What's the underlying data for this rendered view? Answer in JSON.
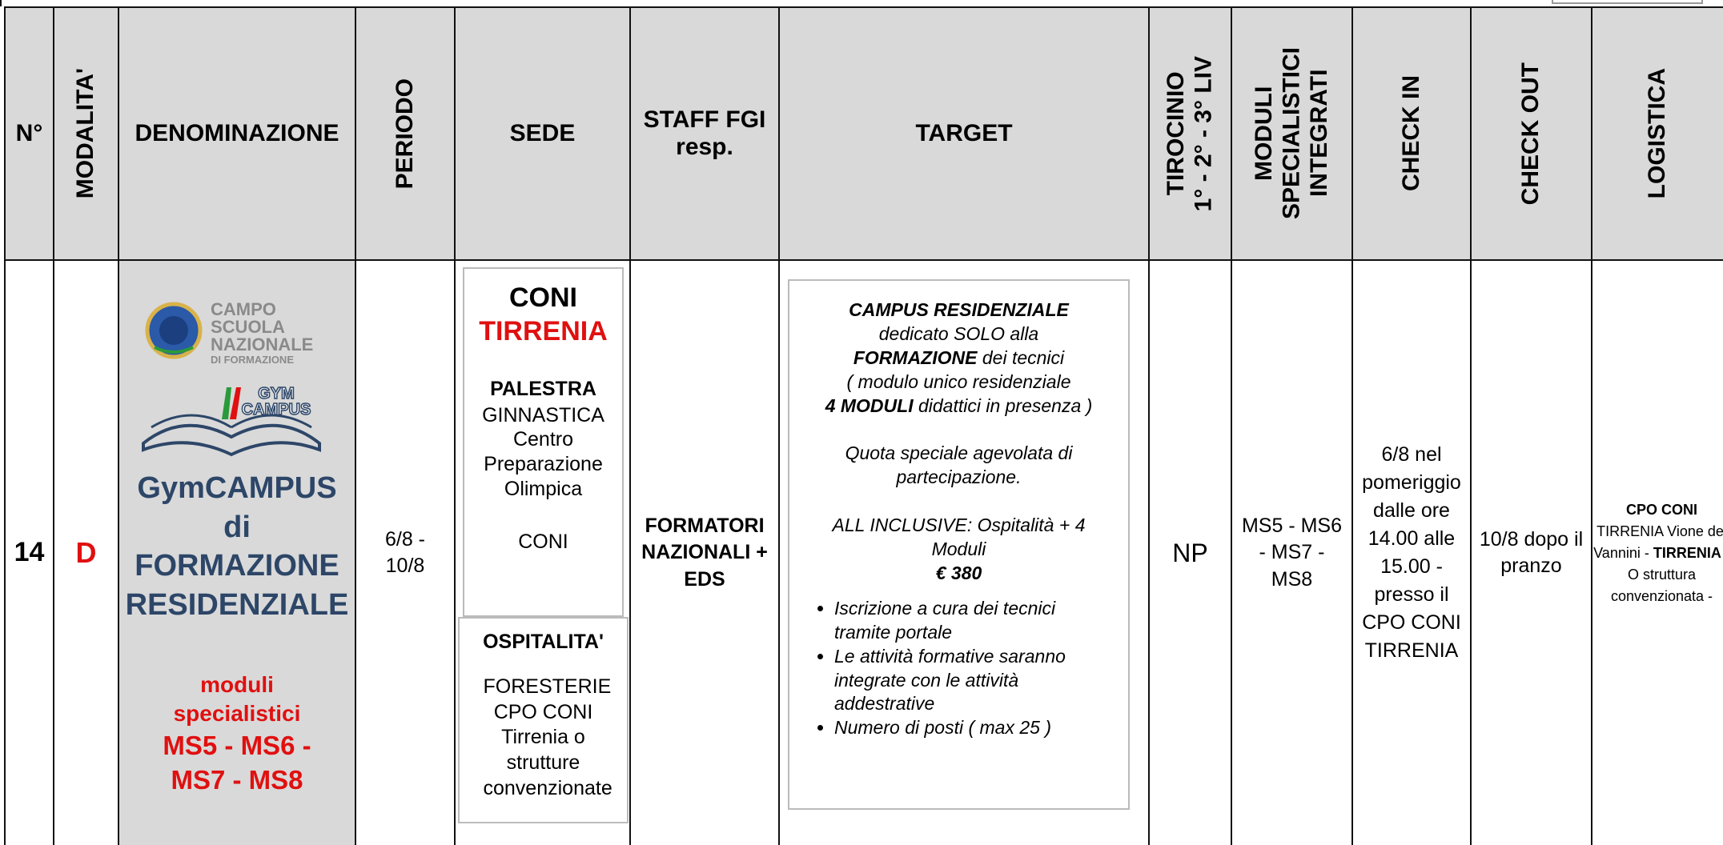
{
  "table": {
    "headers": {
      "number": "N°",
      "modality": "MODALITA'",
      "denomination": "DENOMINAZIONE",
      "period": "PERIODO",
      "venue": "SEDE",
      "staff": [
        "STAFF FGI",
        "resp."
      ],
      "target": "TARGET",
      "internship": [
        "TIROCINIO",
        "1° - 2° - 3° LIV"
      ],
      "modules": [
        "MODULI",
        "SPECIALISTICI",
        "INTEGRATI"
      ],
      "check_in": "CHECK IN",
      "check_out": "CHECK OUT",
      "logistics": "LOGISTICA"
    },
    "row": {
      "number": "14",
      "modality": "D",
      "denomination": {
        "logo_text": [
          "CAMPO",
          "SCUOLA",
          "NAZIONALE",
          "DI FORMAZIONE",
          "GYM",
          "CAMPUS"
        ],
        "title": [
          "GymCAMPUS",
          "di",
          "FORMAZIONE",
          "RESIDENZIALE"
        ],
        "subtitle": [
          "moduli",
          "specialistici",
          "MS5 - MS6 -",
          "MS7 - MS8"
        ]
      },
      "period": "6/8 - 10/8",
      "venue": {
        "name": "CONI",
        "place": "TIRRENIA",
        "gym_title": "PALESTRA",
        "gym": "GINNASTICA",
        "centre": "Centro Preparazione Olimpica",
        "owner": "CONI",
        "hospitality_title": "OSPITALITA'",
        "hospitality": "FORESTERIE CPO CONI Tirrenia o strutture convenzionate"
      },
      "staff": "FORMATORI NAZIONALI + EDS",
      "target": {
        "title": "CAMPUS RESIDENZIALE",
        "line1": "dedicato SOLO alla",
        "line2_bold": "FORMAZIONE",
        "line2": " dei tecnici",
        "line3": "( modulo unico residenziale",
        "line4_bold": "4 MODULI",
        "line4": " didattici in presenza )",
        "quota": "Quota speciale agevolata di partecipazione.",
        "inclusive": "ALL INCLUSIVE: Ospitalità + 4 Moduli",
        "price": "€ 380",
        "bullets": [
          "Iscrizione a cura dei tecnici tramite portale",
          "Le attività formative saranno integrate con le attività addestrative",
          "Numero di posti ( max 25 )"
        ]
      },
      "internship": "NP",
      "modules": "MS5 - MS6 - MS7 - MS8",
      "check_in": "6/8 nel pomeriggio dalle ore 14.00 alle 15.00 - presso il CPO CONI TIRRENIA",
      "check_out": "10/8 dopo il pranzo",
      "logistics": {
        "bold1": "CPO CONI",
        "text1": "TIRRENIA Vione dei Vannini - ",
        "bold2": "TIRRENIA",
        "text2": " - O struttura convenzionata -"
      }
    }
  }
}
